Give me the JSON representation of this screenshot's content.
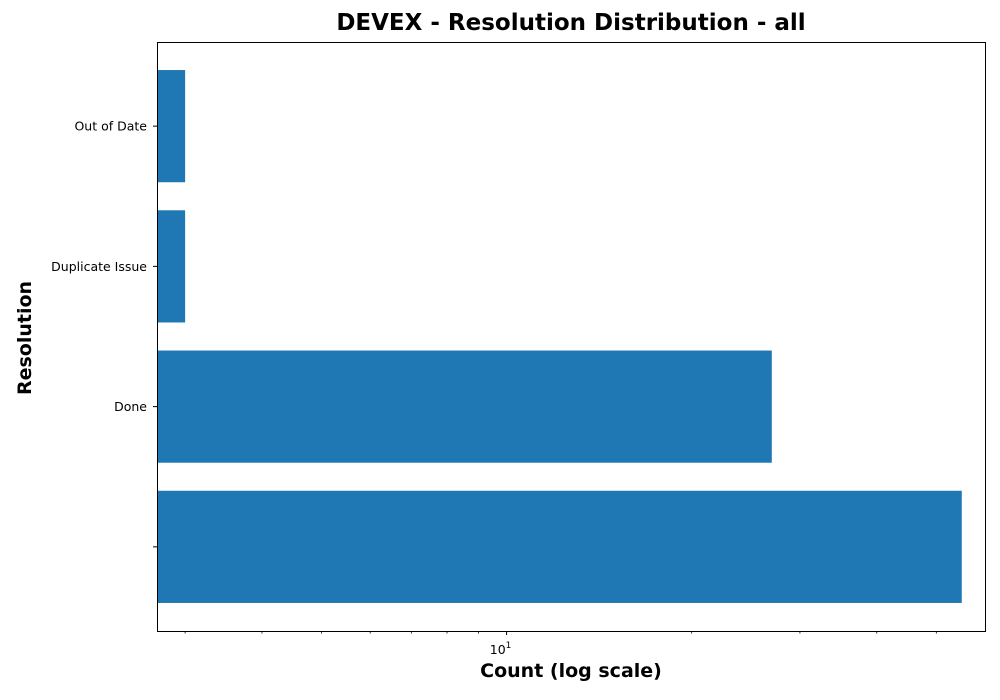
{
  "chart_data": {
    "type": "bar",
    "orientation": "horizontal",
    "title": "DEVEX - Resolution Distribution - all",
    "xlabel": "Count (log scale)",
    "ylabel": "Resolution",
    "x_scale": "log",
    "xlim": [
      2.7,
      60
    ],
    "categories": [
      "",
      "Done",
      "Duplicate Issue",
      "Out of Date"
    ],
    "values": [
      55,
      27,
      3,
      3
    ],
    "x_ticks": [
      {
        "value": 10,
        "base": "10",
        "exp": "1"
      }
    ],
    "color": "#1f77b4",
    "grid": false
  }
}
